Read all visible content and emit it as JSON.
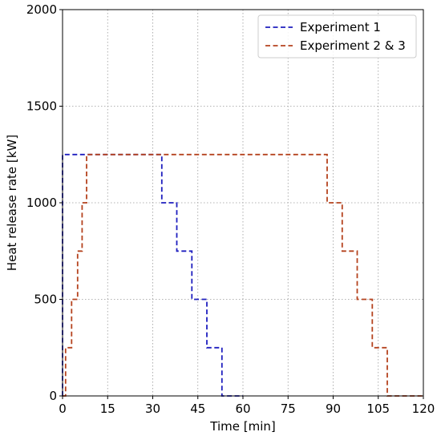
{
  "chart_data": {
    "type": "line",
    "title": "",
    "xlabel": "Time [min]",
    "ylabel": "Heat release rate [kW]",
    "xlim": [
      0,
      120
    ],
    "ylim": [
      0,
      2000
    ],
    "xticks": [
      0,
      15,
      30,
      45,
      60,
      75,
      90,
      105,
      120
    ],
    "yticks": [
      0,
      500,
      1000,
      1500,
      2000
    ],
    "grid": true,
    "legend_position": "top-right",
    "series": [
      {
        "name": "Experiment 1",
        "color": "#1f1fbf",
        "style": "dashed-step",
        "x": [
          0,
          0,
          33,
          33,
          38,
          38,
          43,
          43,
          48,
          48,
          53,
          53,
          60
        ],
        "y": [
          0,
          1250,
          1250,
          1000,
          1000,
          750,
          750,
          500,
          500,
          250,
          250,
          0,
          0
        ]
      },
      {
        "name": "Experiment 2 & 3",
        "color": "#b5431f",
        "style": "dashed-step",
        "x": [
          0,
          1,
          1,
          3,
          3,
          5,
          5,
          6.5,
          6.5,
          8,
          8,
          88,
          88,
          93,
          93,
          98,
          98,
          103,
          103,
          108,
          108,
          120
        ],
        "y": [
          0,
          0,
          250,
          250,
          500,
          500,
          750,
          750,
          1000,
          1000,
          1250,
          1250,
          1000,
          1000,
          750,
          750,
          500,
          500,
          250,
          250,
          0,
          0
        ]
      }
    ]
  }
}
